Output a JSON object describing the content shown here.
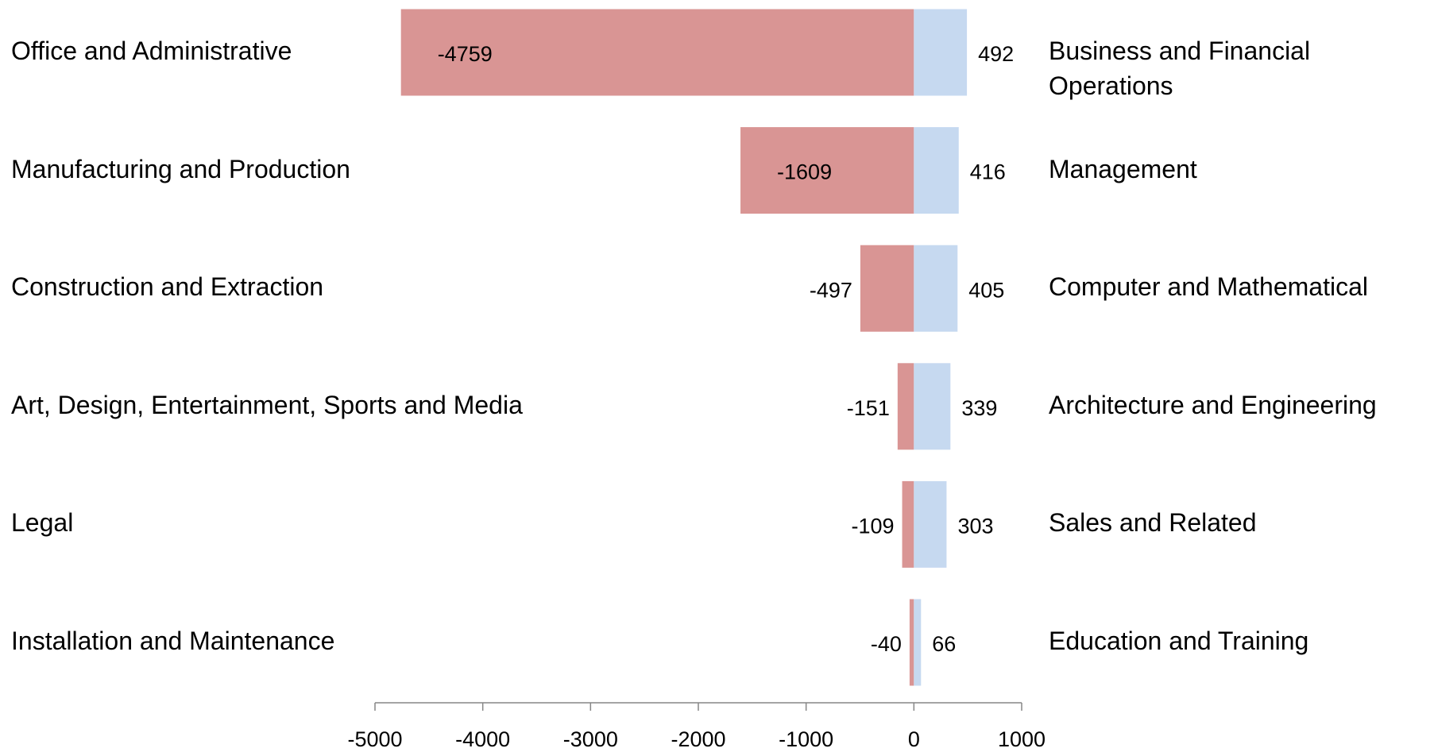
{
  "chart_data": {
    "type": "diverging-bar",
    "series": [
      {
        "color": "#d99594",
        "categories": [
          "Office and Administrative",
          "Manufacturing and Production",
          "Construction and Extraction",
          "Art, Design, Entertainment, Sports and Media",
          "Legal",
          "Installation and Maintenance"
        ],
        "values": [
          -4759,
          -1609,
          -497,
          -151,
          -109,
          -40
        ]
      },
      {
        "color": "#c6d9f0",
        "categories": [
          "Business and Financial Operations",
          "Management",
          "Computer and Mathematical",
          "Architecture and Engineering",
          "Sales and Related",
          "Education and Training"
        ],
        "values": [
          492,
          416,
          405,
          339,
          303,
          66
        ]
      }
    ],
    "xlim": [
      -5000,
      1000
    ],
    "xticks": [
      -5000,
      -4000,
      -3000,
      -2000,
      -1000,
      0,
      1000
    ]
  }
}
